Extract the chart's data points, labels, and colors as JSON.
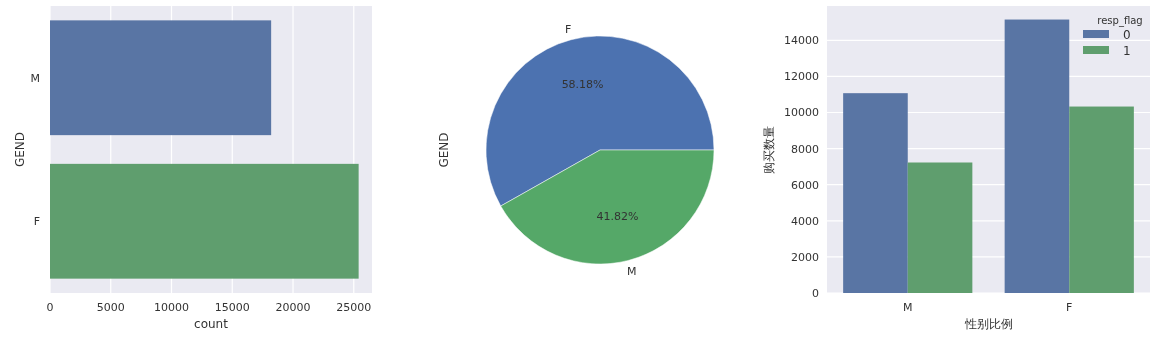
{
  "chart_data": [
    {
      "type": "bar",
      "orientation": "horizontal",
      "categories": [
        "M",
        "F"
      ],
      "values": [
        18200,
        25400
      ],
      "colors": [
        "#5975a4",
        "#5f9e6e"
      ],
      "xlim": [
        0,
        26500
      ],
      "xticks": [
        0,
        5000,
        10000,
        15000,
        20000,
        25000
      ],
      "xlabel": "count",
      "ylabel": "GEND",
      "grid": "x"
    },
    {
      "type": "pie",
      "categories": [
        "F",
        "M"
      ],
      "values": [
        58.18,
        41.82
      ],
      "colors": [
        "#4c72b0",
        "#55a868"
      ],
      "value_labels": [
        "58.18%",
        "41.82%"
      ],
      "ylabel": "GEND"
    },
    {
      "type": "bar",
      "categories": [
        "M",
        "F"
      ],
      "series": [
        {
          "name": "0",
          "color": "#5975a4",
          "values": [
            11070,
            15150
          ]
        },
        {
          "name": "1",
          "color": "#5f9e6e",
          "values": [
            7230,
            10330
          ]
        }
      ],
      "ylim": [
        0,
        15900
      ],
      "yticks": [
        0,
        2000,
        4000,
        6000,
        8000,
        10000,
        12000,
        14000
      ],
      "xlabel": "性别比例",
      "ylabel": "购买数量",
      "grid": "y",
      "legend": "top right",
      "legend_title": "resp_flag"
    }
  ]
}
